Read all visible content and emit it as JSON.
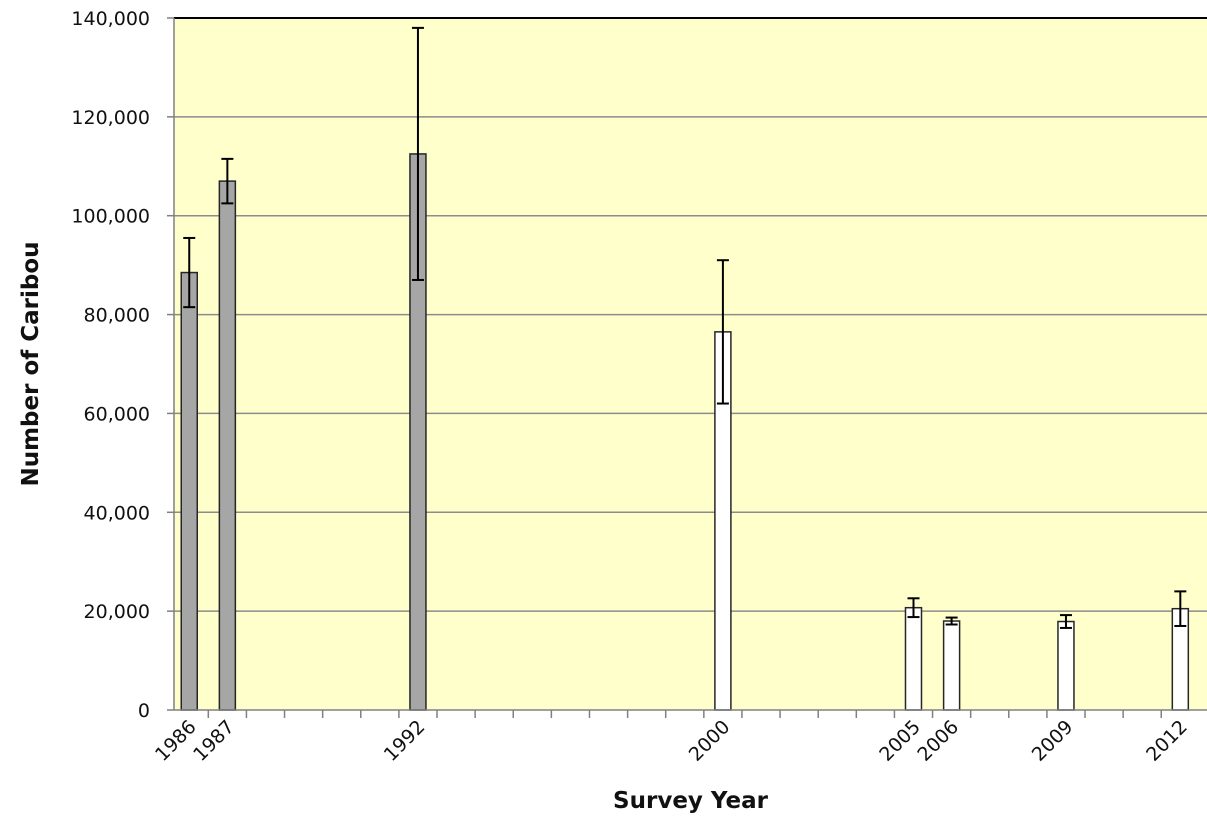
{
  "chart_data": {
    "type": "bar",
    "title": "",
    "xlabel": "Survey Year",
    "ylabel": "Number of Caribou",
    "ylim": [
      0,
      140000
    ],
    "y_ticks": [
      "0",
      "20,000",
      "40,000",
      "60,000",
      "80,000",
      "100,000",
      "120,000",
      "140,000"
    ],
    "x_range": [
      1985.6,
      2012.7
    ],
    "grid": true,
    "legend": "none",
    "colors": {
      "plot_background": "#ffffcc",
      "gridline": "#8c8c8c",
      "bar_filled": "#a6a6a6",
      "bar_open": "#ffffff",
      "bar_edge": "#262626",
      "error_bar": "#000000"
    },
    "series": [
      {
        "points": [
          {
            "year": 1986,
            "label": "1986",
            "value": 88500,
            "err_low": 81500,
            "err_high": 95500,
            "fill": "filled"
          },
          {
            "year": 1987,
            "label": "1987",
            "value": 107000,
            "err_low": 102500,
            "err_high": 111500,
            "fill": "filled"
          },
          {
            "year": 1992,
            "label": "1992",
            "value": 112500,
            "err_low": 87000,
            "err_high": 138000,
            "fill": "filled"
          },
          {
            "year": 2000,
            "label": "2000",
            "value": 76500,
            "err_low": 62000,
            "err_high": 91000,
            "fill": "open"
          },
          {
            "year": 2005,
            "label": "2005",
            "value": 20700,
            "err_low": 18800,
            "err_high": 22600,
            "fill": "open"
          },
          {
            "year": 2006,
            "label": "2006",
            "value": 18000,
            "err_low": 17300,
            "err_high": 18700,
            "fill": "open"
          },
          {
            "year": 2009,
            "label": "2009",
            "value": 17900,
            "err_low": 16600,
            "err_high": 19200,
            "fill": "open"
          },
          {
            "year": 2012,
            "label": "2012",
            "value": 20500,
            "err_low": 17000,
            "err_high": 24000,
            "fill": "open"
          }
        ]
      }
    ]
  }
}
